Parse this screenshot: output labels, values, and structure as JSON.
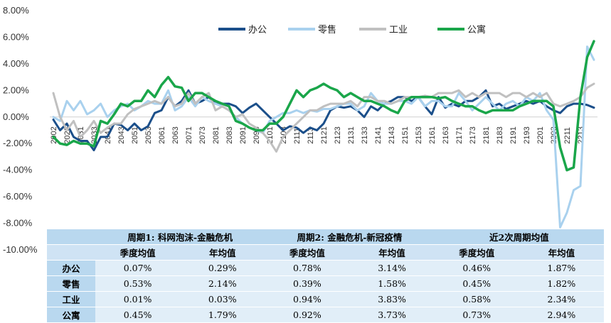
{
  "chart_data": {
    "type": "line",
    "ylim": [
      -0.1,
      0.08
    ],
    "yticks": [
      "8.00%",
      "6.00%",
      "4.00%",
      "2.00%",
      "0.00%",
      "-2.00%",
      "-4.00%",
      "-6.00%",
      "-8.00%",
      "-10.00%"
    ],
    "ytick_values": [
      0.08,
      0.06,
      0.04,
      0.02,
      0.0,
      -0.02,
      -0.04,
      -0.06,
      -0.08,
      -0.1
    ],
    "xtick_labels": [
      "2002",
      "2023",
      "2031",
      "2033",
      "2041",
      "2043",
      "2051",
      "2053",
      "2061",
      "2063",
      "2071",
      "2073",
      "2081",
      "2083",
      "2091",
      "2093",
      "2101",
      "2103",
      "2111",
      "2113",
      "2121",
      "2123",
      "2131",
      "2133",
      "2141",
      "2143",
      "2151",
      "2153",
      "2161",
      "2163",
      "2171",
      "2173",
      "2181",
      "2183",
      "2191",
      "2193",
      "2201",
      "2203",
      "2211",
      "2213"
    ],
    "n_points": 81,
    "legend_position": "top",
    "series": [
      {
        "name": "办公",
        "color": "#1b4f8a",
        "width": 3,
        "values": [
          -0.2,
          -1.0,
          -0.5,
          -1.5,
          -1.8,
          -1.8,
          -2.5,
          -1.5,
          -1.5,
          -0.5,
          -0.6,
          -1.0,
          -0.5,
          -1.0,
          -0.7,
          0.3,
          0.5,
          1.5,
          0.8,
          1.2,
          2.0,
          1.0,
          1.2,
          1.5,
          1.0,
          1.0,
          1.0,
          0.8,
          0.3,
          0.7,
          1.0,
          0.5,
          0.0,
          -0.5,
          -1.0,
          -0.7,
          -0.8,
          -1.2,
          -0.8,
          -1.0,
          -0.5,
          0.5,
          0.8,
          0.7,
          0.8,
          0.5,
          0.0,
          0.8,
          0.5,
          1.0,
          1.2,
          1.5,
          1.5,
          1.2,
          1.5,
          0.8,
          0.2,
          1.5,
          0.7,
          1.0,
          0.8,
          1.2,
          1.2,
          1.5,
          2.0,
          0.8,
          1.0,
          0.6,
          0.8,
          1.0,
          1.2,
          1.0,
          1.2,
          0.8,
          0.5,
          0.3,
          0.8,
          1.0,
          1.0,
          0.9,
          0.7
        ]
      },
      {
        "name": "零售",
        "color": "#a9d1ee",
        "width": 3,
        "values": [
          0.0,
          -0.3,
          1.2,
          0.5,
          1.2,
          0.2,
          0.5,
          1.0,
          0.0,
          0.5,
          0.8,
          1.0,
          0.5,
          0.8,
          1.2,
          1.0,
          1.0,
          2.0,
          0.5,
          0.8,
          1.5,
          0.8,
          1.5,
          1.2,
          1.0,
          0.8,
          0.5,
          0.0,
          -0.5,
          -0.8,
          -1.0,
          -1.2,
          -0.3,
          0.0,
          0.3,
          0.3,
          0.5,
          0.3,
          0.5,
          0.4,
          0.6,
          0.6,
          0.8,
          1.0,
          1.0,
          0.5,
          0.8,
          1.8,
          1.2,
          1.0,
          1.0,
          1.2,
          1.2,
          1.0,
          1.5,
          0.8,
          1.2,
          1.2,
          0.8,
          0.8,
          1.8,
          1.2,
          0.5,
          1.0,
          1.5,
          1.0,
          0.5,
          1.0,
          1.2,
          0.8,
          1.5,
          1.2,
          1.8,
          0.5,
          -0.2,
          -8.3,
          -7.2,
          -5.5,
          -5.2,
          5.3,
          4.3
        ]
      },
      {
        "name": "工业",
        "color": "#c0c0c0",
        "width": 3,
        "values": [
          1.8,
          0.0,
          -1.0,
          -0.3,
          -1.5,
          -1.0,
          -0.3,
          -1.2,
          -0.8,
          -0.5,
          -0.5,
          0.2,
          0.6,
          0.8,
          1.0,
          1.2,
          1.0,
          1.5,
          0.8,
          1.0,
          1.8,
          1.0,
          1.5,
          1.8,
          0.5,
          0.8,
          0.5,
          0.0,
          0.2,
          -0.5,
          -0.8,
          -1.2,
          -1.8,
          -2.6,
          -1.5,
          -1.0,
          -0.5,
          0.0,
          0.5,
          0.5,
          0.8,
          1.0,
          1.0,
          1.0,
          1.2,
          0.8,
          1.5,
          1.5,
          1.2,
          1.2,
          1.0,
          1.2,
          1.5,
          1.5,
          1.5,
          1.6,
          1.5,
          1.8,
          1.8,
          1.8,
          2.0,
          1.5,
          1.8,
          1.5,
          1.8,
          1.8,
          1.8,
          1.5,
          1.8,
          1.8,
          1.5,
          1.8,
          1.5,
          1.8,
          1.0,
          0.8,
          1.0,
          1.2,
          1.5,
          2.2,
          2.5
        ]
      },
      {
        "name": "公寓",
        "color": "#1aa64a",
        "width": 3.5,
        "values": [
          -1.5,
          -2.0,
          -2.1,
          -1.8,
          -2.0,
          -2.0,
          -2.2,
          -0.3,
          -0.5,
          0.2,
          1.0,
          0.8,
          1.2,
          1.2,
          2.0,
          1.5,
          2.4,
          3.0,
          2.3,
          2.2,
          1.2,
          1.8,
          1.8,
          1.5,
          1.2,
          1.0,
          0.8,
          -0.3,
          -0.5,
          -0.8,
          -1.0,
          -1.0,
          -0.5,
          -0.5,
          0.0,
          1.0,
          2.0,
          1.5,
          2.0,
          2.2,
          2.5,
          2.2,
          2.0,
          1.5,
          1.8,
          1.5,
          1.2,
          1.2,
          1.0,
          0.8,
          0.5,
          0.3,
          1.2,
          1.5,
          1.5,
          1.5,
          1.5,
          1.4,
          1.5,
          1.2,
          1.0,
          0.8,
          0.8,
          0.5,
          0.3,
          0.5,
          0.5,
          0.5,
          0.5,
          0.8,
          1.0,
          1.2,
          1.2,
          1.2,
          0.8,
          -2.3,
          -4.0,
          -3.8,
          1.5,
          4.5,
          5.7
        ]
      }
    ]
  },
  "table": {
    "periods": [
      "周期1: 科网泡沫-金融危机",
      "周期2: 金融危机-新冠疫情",
      "近2次周期均值"
    ],
    "subheaders": [
      "季度均值",
      "年均值",
      "季度均值",
      "年均值",
      "季度均值",
      "年均值"
    ],
    "rows": [
      {
        "label": "办公",
        "values": [
          "0.07%",
          "0.29%",
          "0.78%",
          "3.14%",
          "0.46%",
          "1.87%"
        ]
      },
      {
        "label": "零售",
        "values": [
          "0.53%",
          "2.14%",
          "0.39%",
          "1.58%",
          "0.45%",
          "1.82%"
        ]
      },
      {
        "label": "工业",
        "values": [
          "0.01%",
          "0.03%",
          "0.94%",
          "3.83%",
          "0.58%",
          "2.34%"
        ]
      },
      {
        "label": "公寓",
        "values": [
          "0.45%",
          "1.79%",
          "0.92%",
          "3.73%",
          "0.73%",
          "2.94%"
        ]
      }
    ]
  }
}
